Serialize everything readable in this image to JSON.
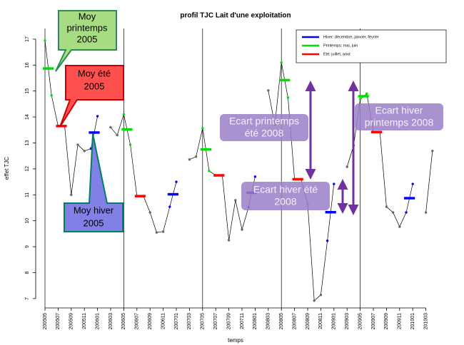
{
  "chart_data": {
    "type": "line",
    "title": "profil TJC Lait d'une exploitation",
    "xlabel": "temps",
    "ylabel": "effet TJC",
    "categories": [
      "200505",
      null,
      "200507",
      null,
      "200509",
      null,
      "200511",
      null,
      "200601",
      null,
      "200603",
      null,
      "200605",
      null,
      "200607",
      null,
      "200609",
      null,
      "200611",
      null,
      "200701",
      null,
      "200703",
      null,
      "200705",
      null,
      "200707",
      null,
      "200709",
      null,
      "200711",
      null,
      "200801",
      null,
      "200803",
      null,
      "200805",
      null,
      "200807",
      null,
      "200809",
      null,
      "200811",
      null,
      "200901",
      null,
      "200903",
      null,
      "200905",
      null,
      "200907",
      null,
      "200909",
      null,
      "200911",
      null,
      "201001",
      null,
      "201003",
      null
    ],
    "values": [
      16.95,
      14.83,
      13.65,
      13.65,
      11.0,
      12.93,
      12.69,
      12.78,
      14.03,
      null,
      13.6,
      13.3,
      14.1,
      12.93,
      10.95,
      10.95,
      10.32,
      9.55,
      9.58,
      10.54,
      11.5,
      null,
      12.36,
      12.47,
      13.57,
      11.92,
      11.75,
      11.75,
      9.25,
      10.79,
      9.66,
      10.52,
      11.7,
      null,
      15.02,
      13.7,
      16.1,
      14.75,
      11.6,
      11.6,
      10.65,
      6.92,
      7.14,
      9.23,
      11.42,
      null,
      12.08,
      12.9,
      14.68,
      14.9,
      13.42,
      13.42,
      10.54,
      10.32,
      9.77,
      10.32,
      11.42,
      null,
      10.32,
      12.69
    ],
    "line_color": "#000000",
    "point_color": "#666666",
    "series": [
      {
        "name": "Hiver: décembre, janvier, février",
        "color": "#0000ff",
        "values": [
          null,
          null,
          null,
          null,
          null,
          null,
          null,
          13.4,
          13.4,
          null,
          null,
          null,
          null,
          null,
          null,
          null,
          null,
          null,
          null,
          11.02,
          11.02,
          null,
          null,
          null,
          null,
          null,
          null,
          null,
          null,
          null,
          null,
          11.08,
          11.08,
          null,
          null,
          null,
          null,
          null,
          null,
          null,
          null,
          null,
          null,
          10.33,
          10.33,
          null,
          null,
          null,
          null,
          null,
          null,
          null,
          null,
          null,
          null,
          10.87,
          10.87,
          null,
          null,
          null
        ]
      },
      {
        "name": "Printemps: mai, juin",
        "color": "#00dd00",
        "values": [
          15.87,
          15.87,
          null,
          null,
          null,
          null,
          null,
          null,
          null,
          null,
          null,
          null,
          13.52,
          13.52,
          null,
          null,
          null,
          null,
          null,
          null,
          null,
          null,
          null,
          null,
          12.75,
          12.75,
          null,
          null,
          null,
          null,
          null,
          null,
          null,
          null,
          null,
          null,
          15.42,
          15.42,
          null,
          null,
          null,
          null,
          null,
          null,
          null,
          null,
          null,
          null,
          14.8,
          14.8,
          null,
          null,
          null,
          null,
          null,
          null,
          null,
          null,
          null,
          null
        ]
      },
      {
        "name": "Eté: juillet, aout",
        "color": "#ff0000",
        "values": [
          null,
          null,
          13.65,
          13.65,
          null,
          null,
          null,
          null,
          null,
          null,
          null,
          null,
          null,
          null,
          10.95,
          10.95,
          null,
          null,
          null,
          null,
          null,
          null,
          null,
          null,
          null,
          null,
          11.75,
          11.75,
          null,
          null,
          null,
          null,
          null,
          null,
          null,
          null,
          null,
          null,
          11.6,
          11.6,
          null,
          null,
          null,
          null,
          null,
          null,
          null,
          null,
          null,
          null,
          13.42,
          13.42,
          null,
          null,
          null,
          null,
          null,
          null,
          null,
          null
        ]
      }
    ],
    "vlines": [
      0,
      12,
      24,
      36,
      48
    ],
    "ylim": [
      6.64,
      17.41
    ],
    "yticks": [
      7,
      8,
      9,
      10,
      11,
      12,
      13,
      14,
      15,
      16,
      17
    ],
    "legend": "top-right",
    "annotations": [
      {
        "lines": [
          "Moy",
          "printemps",
          "2005"
        ]
      },
      {
        "lines": [
          "Moy été",
          "2005"
        ]
      },
      {
        "lines": [
          "Moy hiver",
          "2005"
        ]
      },
      {
        "lines": [
          "Ecart printemps",
          "été 2008"
        ]
      },
      {
        "lines": [
          "Ecart hiver été",
          "2008"
        ]
      },
      {
        "lines": [
          "Ecart hiver",
          "printemps 2008"
        ]
      }
    ]
  }
}
